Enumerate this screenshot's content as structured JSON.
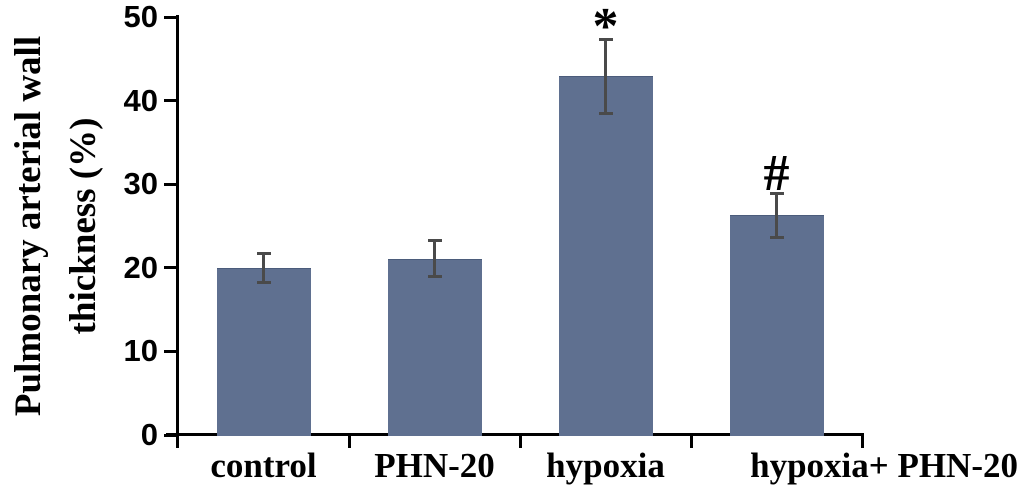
{
  "chart_data": {
    "type": "bar",
    "title": "",
    "ylabel": "Pulmonary arterial wall thickness (%)",
    "ylabel_line1": "Pulmonary arterial wall",
    "ylabel_line2": "thickness (%)",
    "xlabel": "",
    "categories": [
      "control",
      "PHN-20",
      "hypoxia",
      "hypoxia+ PHN-20"
    ],
    "values": [
      20.0,
      21.1,
      42.9,
      26.3
    ],
    "errors": [
      1.8,
      2.2,
      4.5,
      2.7
    ],
    "annotations": [
      "",
      "",
      "*",
      "#"
    ],
    "ylim": [
      0,
      50
    ],
    "yticks": [
      0,
      10,
      20,
      30,
      40,
      50
    ],
    "grid": false,
    "legend": "none",
    "colors": {
      "bar_fill": "#5f7090",
      "error_bar": "#4a4a4a",
      "axis": "#000000",
      "text": "#000000",
      "background": "#ffffff"
    }
  }
}
